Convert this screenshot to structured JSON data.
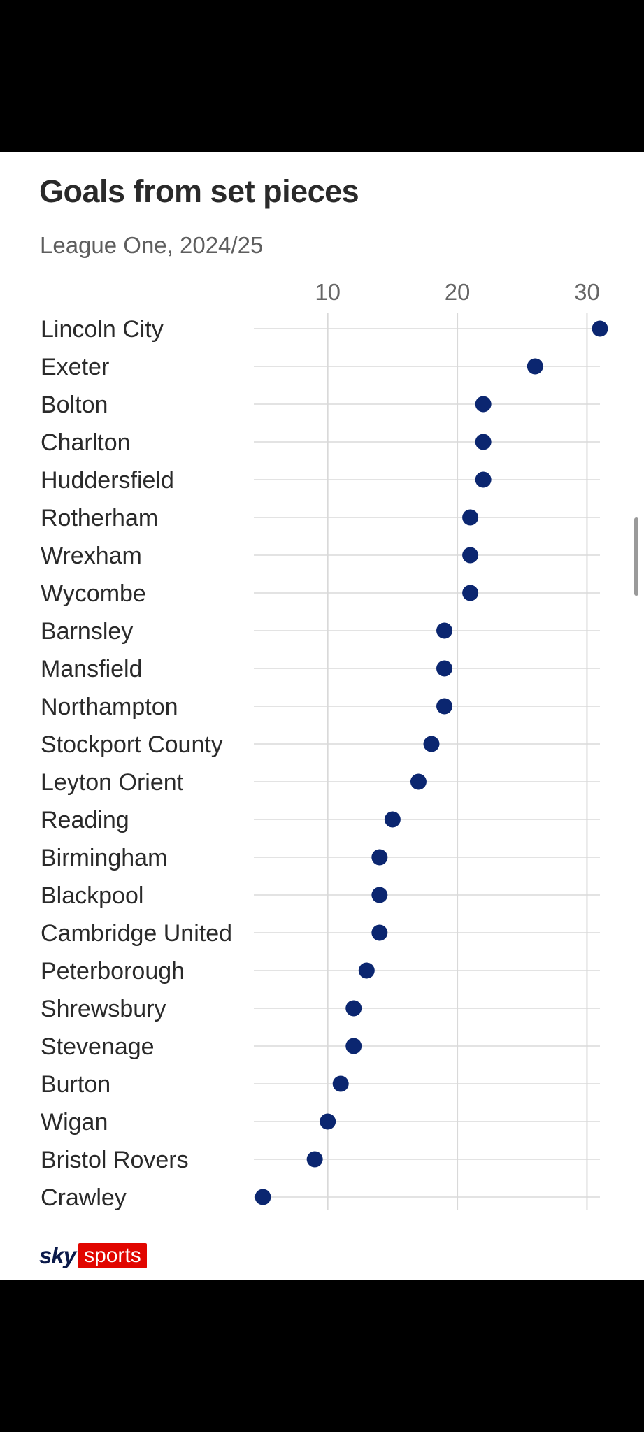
{
  "chart_data": {
    "type": "scatter",
    "title": "Goals from set pieces",
    "subtitle": "League One, 2024/25",
    "x_ticks": [
      10,
      20,
      30
    ],
    "xlim": [
      4.3,
      31
    ],
    "grid": true,
    "marker_color": "#0b2670",
    "categories": [
      "Lincoln City",
      "Exeter",
      "Bolton",
      "Charlton",
      "Huddersfield",
      "Rotherham",
      "Wrexham",
      "Wycombe",
      "Barnsley",
      "Mansfield",
      "Northampton",
      "Stockport County",
      "Leyton Orient",
      "Reading",
      "Birmingham",
      "Blackpool",
      "Cambridge United",
      "Peterborough",
      "Shrewsbury",
      "Stevenage",
      "Burton",
      "Wigan",
      "Bristol Rovers",
      "Crawley"
    ],
    "values": [
      31,
      26,
      22,
      22,
      22,
      21,
      21,
      21,
      19,
      19,
      19,
      18,
      17,
      15,
      14,
      14,
      14,
      13,
      12,
      12,
      11,
      10,
      9,
      5
    ]
  },
  "brand": {
    "part1": "sky",
    "part2": "sports"
  }
}
